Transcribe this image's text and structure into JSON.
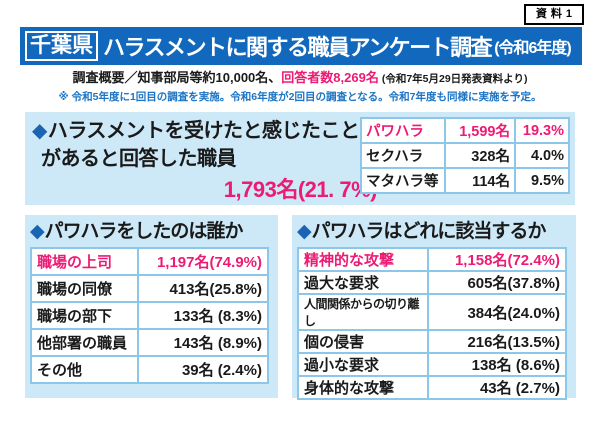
{
  "badge": {
    "label": "資料1"
  },
  "header": {
    "prefecture": "千葉県",
    "title": "ハラスメントに関する職員アンケート調査",
    "year": "(令和6年度)"
  },
  "overview": {
    "text": "調査概要／知事部局等約10,000名、",
    "respondents": "回答者数8,269名",
    "source": "(令和7年5月29日発表資料より)",
    "footnote": "※ 令和5年度に1回目の調査を実施。令和6年度が2回目の調査となる。令和7年度も同様に実施を予定。"
  },
  "summary": {
    "heading": {
      "bullet": "◆",
      "line1": "ハラスメントを受けたと感じたこと",
      "line2": "があると回答した職員"
    },
    "value": "1,793名(21. 7%)",
    "table": {
      "rows": [
        {
          "label": "パワハラ",
          "count": "1,599名",
          "pct": "19.3%"
        },
        {
          "label": "セクハラ",
          "count": "328名",
          "pct": "4.0%"
        },
        {
          "label": "マタハラ等",
          "count": "114名",
          "pct": "9.5%"
        }
      ]
    }
  },
  "who": {
    "heading": {
      "bullet": "◆",
      "text": "パワハラをしたのは誰か"
    },
    "rows": [
      {
        "label": "職場の上司",
        "value": "1,197名(74.9%)"
      },
      {
        "label": "職場の同僚",
        "value": "413名(25.8%)"
      },
      {
        "label": "職場の部下",
        "value": "133名 (8.3%)"
      },
      {
        "label": "他部署の職員",
        "value": "143名 (8.9%)"
      },
      {
        "label": "その他",
        "value": "39名 (2.4%)"
      }
    ]
  },
  "which": {
    "heading": {
      "bullet": "◆",
      "text": "パワハラはどれに該当するか"
    },
    "rows": [
      {
        "label": "精神的な攻撃",
        "value": "1,158名(72.4%)"
      },
      {
        "label": "過大な要求",
        "value": "605名(37.8%)"
      },
      {
        "label": "人間関係からの切り離し",
        "value": "384名(24.0%)"
      },
      {
        "label": "個の侵害",
        "value": "216名(13.5%)"
      },
      {
        "label": "過小な要求",
        "value": "138名 (8.6%)"
      },
      {
        "label": "身体的な攻撃",
        "value": "43名 (2.7%)"
      }
    ]
  },
  "colors": {
    "bar_blue": "#1268bc",
    "panel_blue": "#cde9f8",
    "table_border": "#8cc6e8",
    "pink": "#ec1c74",
    "note_blue": "#1b74c5",
    "diamond_blue": "#1a64b4",
    "text_black": "#1a1a1a"
  }
}
